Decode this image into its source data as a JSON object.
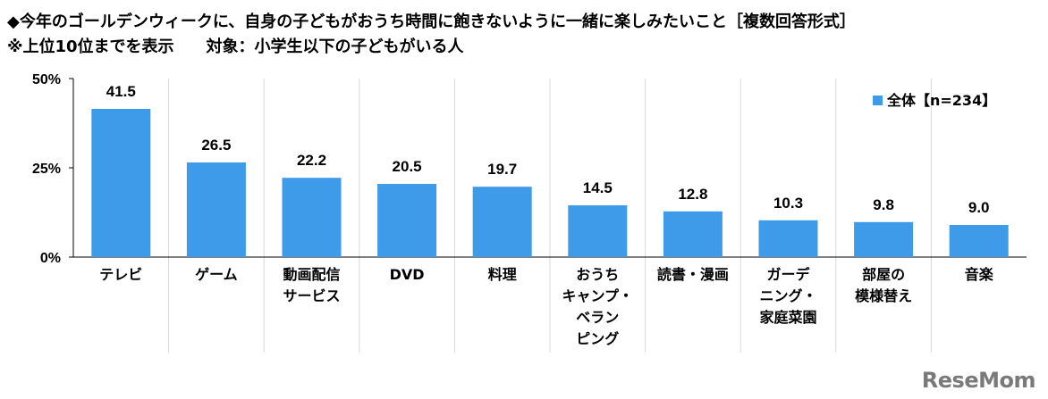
{
  "header": {
    "title": "◆今年のゴールデンウィークに、自身の子どもがおうち時間に飽きないように一緒に楽しみたいこと［複数回答形式］",
    "subtitle": "※上位10位までを表示　　対象：小学生以下の子どもがいる人"
  },
  "watermark": "ReseMom",
  "colors": {
    "bar": "#3d9be9",
    "grid": "#d9d9d9",
    "axis": "#000000"
  },
  "chart_data": {
    "type": "bar",
    "categories": [
      [
        "テレビ"
      ],
      [
        "ゲーム"
      ],
      [
        "動画配信",
        "サービス"
      ],
      [
        "DVD"
      ],
      [
        "料理"
      ],
      [
        "おうち",
        "キャンプ・",
        "ベラン",
        "ピング"
      ],
      [
        "読書・漫画"
      ],
      [
        "ガーデ",
        "ニング・",
        "家庭菜園"
      ],
      [
        "部屋の",
        "模様替え"
      ],
      [
        "音楽"
      ]
    ],
    "series": [
      {
        "name": "全体【n=234】",
        "values": [
          41.5,
          26.5,
          22.2,
          20.5,
          19.7,
          14.5,
          12.8,
          10.3,
          9.8,
          9.0
        ]
      }
    ],
    "data_labels": [
      "41.5",
      "26.5",
      "22.2",
      "20.5",
      "19.7",
      "14.5",
      "12.8",
      "10.3",
      "9.8",
      "9.0"
    ],
    "y_ticks": [
      "0%",
      "25%",
      "50%"
    ],
    "y_tick_values": [
      0,
      25,
      50
    ],
    "ylim": [
      0,
      50
    ],
    "legend_position": "top-right",
    "grid": "vertical separators"
  }
}
